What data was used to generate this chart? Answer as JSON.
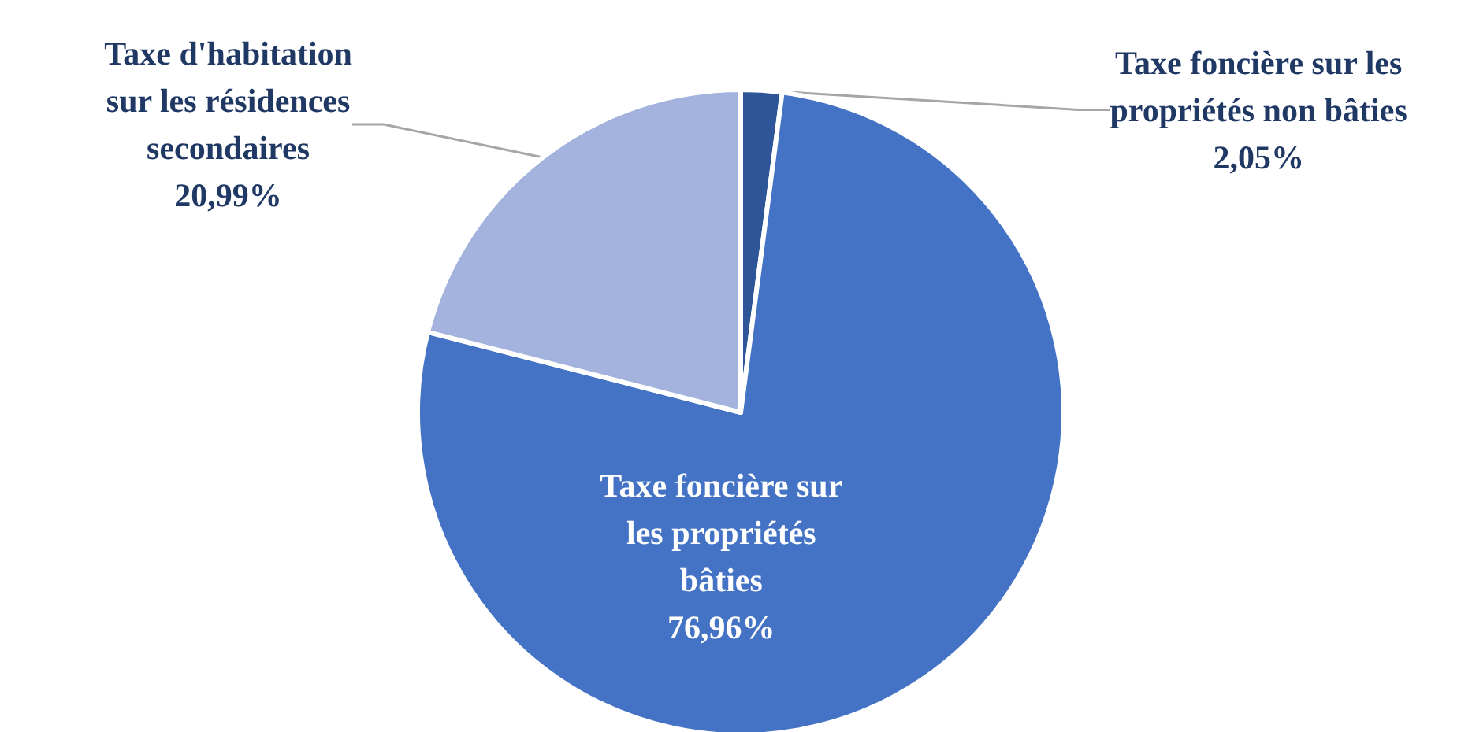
{
  "chart_data": {
    "type": "pie",
    "categories": [
      "Taxe foncière sur les\npropriétés non bâties",
      "Taxe foncière sur\nles propriétés\nbâties",
      "Taxe d'habitation\nsur les résidences\nsecondaires"
    ],
    "values": [
      2.05,
      76.96,
      20.99
    ],
    "colors": [
      "#2e5597",
      "#4472c4",
      "#a3b3dd"
    ],
    "value_labels": [
      "2,05%",
      "76,96%",
      "20,99%"
    ]
  }
}
